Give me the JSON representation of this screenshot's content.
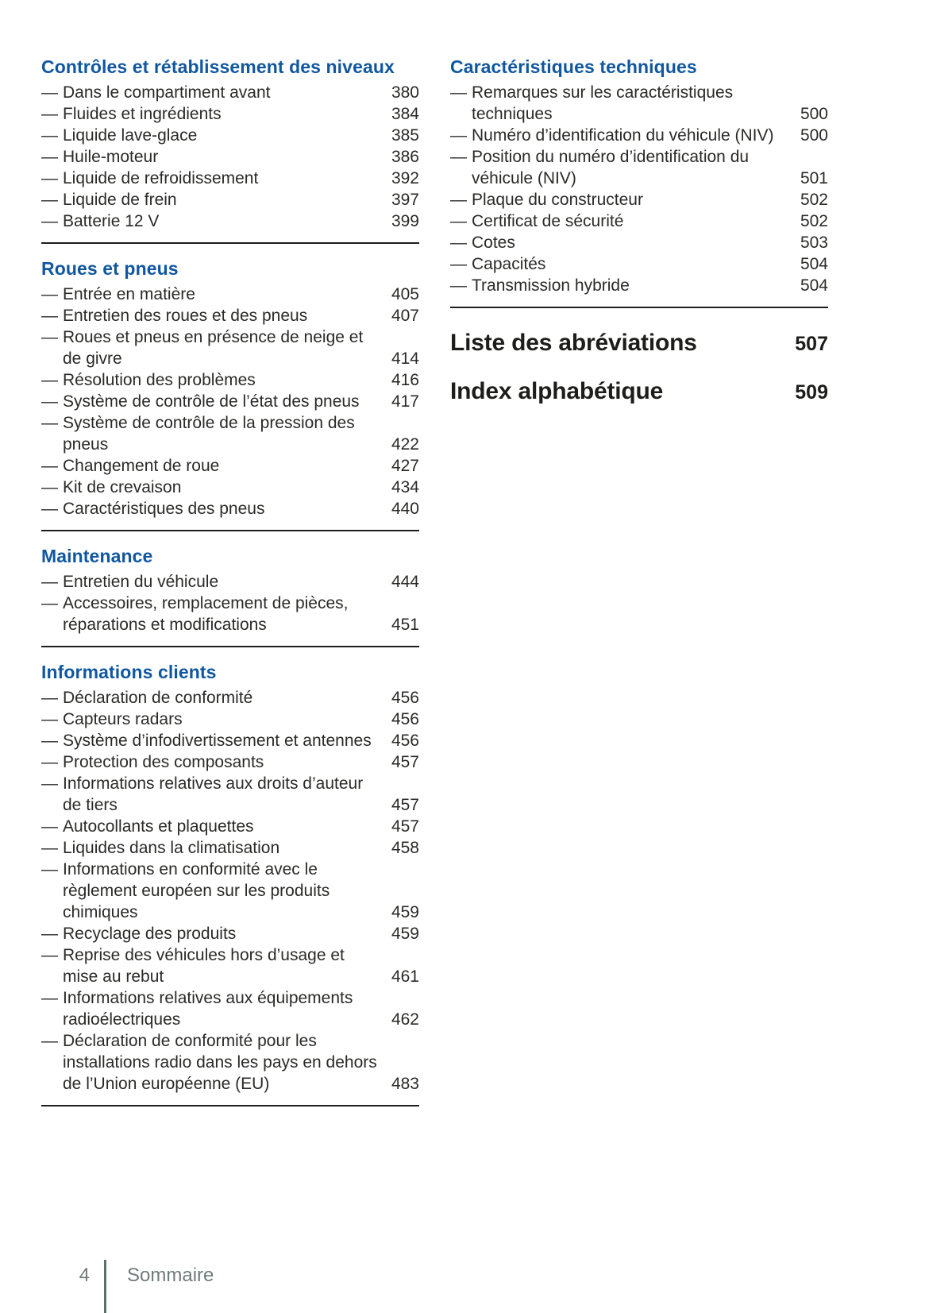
{
  "document_title": "Sommaire",
  "colors": {
    "heading_blue": "#1057a0",
    "body_text": "#2b2a28",
    "rule": "#1d1d1b",
    "footer_gray": "#6f7c7a"
  },
  "footer": {
    "page_number": "4",
    "label": "Sommaire"
  },
  "columns": [
    {
      "sections": [
        {
          "title": "Contrôles et rétablissement des niveaux",
          "items": [
            {
              "label": "Dans le compartiment avant",
              "page": "380"
            },
            {
              "label": "Fluides et ingrédients",
              "page": "384"
            },
            {
              "label": "Liquide lave-glace",
              "page": "385"
            },
            {
              "label": "Huile-moteur",
              "page": "386"
            },
            {
              "label": "Liquide de refroidissement",
              "page": "392"
            },
            {
              "label": "Liquide de frein",
              "page": "397"
            },
            {
              "label": "Batterie 12 V",
              "page": "399"
            }
          ]
        },
        {
          "title": "Roues et pneus",
          "items": [
            {
              "label": "Entrée en matière",
              "page": "405"
            },
            {
              "label": "Entretien des roues et des pneus",
              "page": "407"
            },
            {
              "label": "Roues et pneus en présence de neige et de givre",
              "page": "414"
            },
            {
              "label": "Résolution des problèmes",
              "page": "416"
            },
            {
              "label": "Système de contrôle de l’état des pneus",
              "page": "417"
            },
            {
              "label": "Système de contrôle de la pression des pneus",
              "page": "422"
            },
            {
              "label": "Changement de roue",
              "page": "427"
            },
            {
              "label": "Kit de crevaison",
              "page": "434"
            },
            {
              "label": "Caractéristiques des pneus",
              "page": "440"
            }
          ]
        },
        {
          "title": "Maintenance",
          "items": [
            {
              "label": "Entretien du véhicule",
              "page": "444"
            },
            {
              "label": "Accessoires, remplacement de pièces, réparations et modifications",
              "page": "451"
            }
          ]
        },
        {
          "title": "Informations clients",
          "items": [
            {
              "label": "Déclaration de conformité",
              "page": "456"
            },
            {
              "label": "Capteurs radars",
              "page": "456"
            },
            {
              "label": "Système d’infodivertissement et antennes",
              "page": "456"
            },
            {
              "label": "Protection des composants",
              "page": "457"
            },
            {
              "label": "Informations relatives aux droits d’auteur de tiers",
              "page": "457"
            },
            {
              "label": "Autocollants et plaquettes",
              "page": "457"
            },
            {
              "label": "Liquides dans la climatisation",
              "page": "458"
            },
            {
              "label": "Informations en conformité avec le règlement européen sur les produits chimiques",
              "page": "459"
            },
            {
              "label": "Recyclage des produits",
              "page": "459"
            },
            {
              "label": "Reprise des véhicules hors d’usage et mise au rebut",
              "page": "461"
            },
            {
              "label": "Informations relatives aux équipements radioélectriques",
              "page": "462"
            },
            {
              "label": "Déclaration de conformité pour les installations radio dans les pays en dehors de l’Union européenne (EU)",
              "page": "483"
            }
          ]
        }
      ],
      "major_entries": []
    },
    {
      "sections": [
        {
          "title": "Caractéristiques techniques",
          "items": [
            {
              "label": "Remarques sur les caractéristiques techniques",
              "page": "500"
            },
            {
              "label": "Numéro d’identification du véhicule (NIV)",
              "page": "500"
            },
            {
              "label": "Position du numéro d’identification du véhicule (NIV)",
              "page": "501"
            },
            {
              "label": "Plaque du constructeur",
              "page": "502"
            },
            {
              "label": "Certificat de sécurité",
              "page": "502"
            },
            {
              "label": "Cotes",
              "page": "503"
            },
            {
              "label": "Capacités",
              "page": "504"
            },
            {
              "label": "Transmission hybride",
              "page": "504"
            }
          ]
        }
      ],
      "major_entries": [
        {
          "title": "Liste des abréviations",
          "page": "507"
        },
        {
          "title": "Index alphabétique",
          "page": "509"
        }
      ]
    }
  ]
}
